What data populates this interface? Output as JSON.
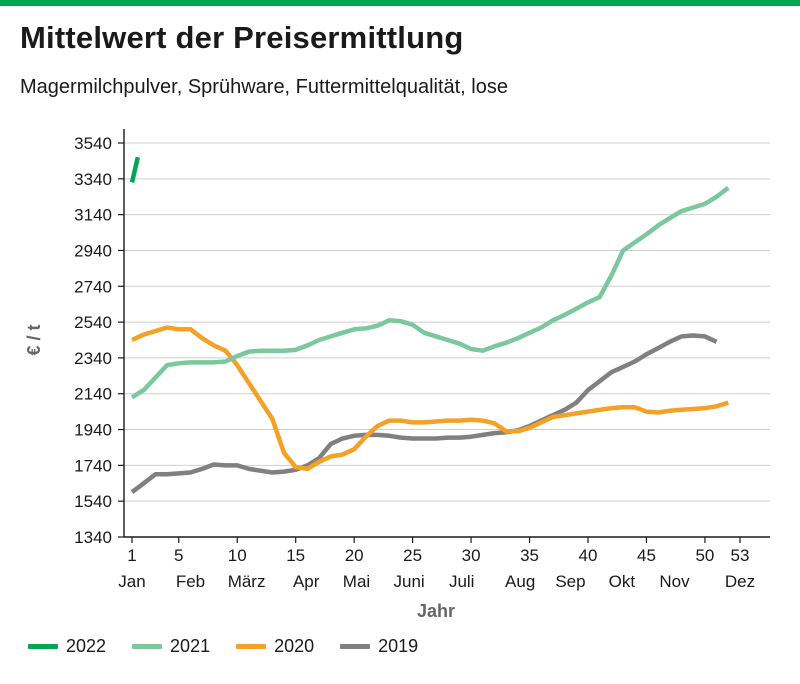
{
  "page": {
    "title": "Mittelwert der Preisermittlung",
    "subtitle": "Magermilchpulver, Sprühware, Futtermittelqualität, lose"
  },
  "chart_data": {
    "type": "line",
    "title": "Mittelwert der Preisermittlung",
    "subtitle": "Magermilchpulver, Sprühware, Futtermittelqualität, lose",
    "xlabel": "Jahr",
    "ylabel": "€ / t",
    "ylim": [
      1340,
      3540
    ],
    "xlim": [
      1,
      53
    ],
    "y_ticks": [
      1340,
      1540,
      1740,
      1940,
      2140,
      2340,
      2540,
      2740,
      2940,
      3140,
      3340,
      3540
    ],
    "x_ticks": [
      1,
      5,
      10,
      15,
      20,
      25,
      30,
      35,
      40,
      45,
      50,
      53
    ],
    "month_labels": [
      {
        "label": "Jan",
        "x": 1
      },
      {
        "label": "Feb",
        "x": 6
      },
      {
        "label": "März",
        "x": 10.8
      },
      {
        "label": "Apr",
        "x": 15.9
      },
      {
        "label": "Mai",
        "x": 20.2
      },
      {
        "label": "Juni",
        "x": 24.7
      },
      {
        "label": "Juli",
        "x": 29.2
      },
      {
        "label": "Aug",
        "x": 34.2
      },
      {
        "label": "Sep",
        "x": 38.5
      },
      {
        "label": "Okt",
        "x": 42.9
      },
      {
        "label": "Nov",
        "x": 47.4
      },
      {
        "label": "Dez",
        "x": 53
      }
    ],
    "grid": "horizontal",
    "legend_position": "bottom",
    "series": [
      {
        "name": "2022",
        "color": "#00a651",
        "points": [
          [
            1,
            3320
          ],
          [
            1.5,
            3460
          ]
        ]
      },
      {
        "name": "2021",
        "color": "#7cc89d",
        "points": [
          [
            1,
            2120
          ],
          [
            2,
            2160
          ],
          [
            3,
            2230
          ],
          [
            4,
            2300
          ],
          [
            5,
            2310
          ],
          [
            6,
            2315
          ],
          [
            7,
            2315
          ],
          [
            8,
            2315
          ],
          [
            9,
            2320
          ],
          [
            10,
            2350
          ],
          [
            11,
            2375
          ],
          [
            12,
            2380
          ],
          [
            13,
            2380
          ],
          [
            14,
            2380
          ],
          [
            15,
            2385
          ],
          [
            16,
            2410
          ],
          [
            17,
            2440
          ],
          [
            18,
            2460
          ],
          [
            19,
            2480
          ],
          [
            20,
            2500
          ],
          [
            21,
            2505
          ],
          [
            22,
            2520
          ],
          [
            23,
            2550
          ],
          [
            24,
            2545
          ],
          [
            25,
            2525
          ],
          [
            26,
            2480
          ],
          [
            27,
            2460
          ],
          [
            28,
            2440
          ],
          [
            29,
            2420
          ],
          [
            30,
            2390
          ],
          [
            31,
            2380
          ],
          [
            32,
            2405
          ],
          [
            33,
            2425
          ],
          [
            34,
            2450
          ],
          [
            35,
            2480
          ],
          [
            36,
            2510
          ],
          [
            37,
            2550
          ],
          [
            38,
            2580
          ],
          [
            39,
            2615
          ],
          [
            40,
            2650
          ],
          [
            41,
            2680
          ],
          [
            42,
            2800
          ],
          [
            43,
            2940
          ],
          [
            44,
            2985
          ],
          [
            45,
            3030
          ],
          [
            46,
            3080
          ],
          [
            47,
            3120
          ],
          [
            48,
            3160
          ],
          [
            49,
            3180
          ],
          [
            50,
            3200
          ],
          [
            51,
            3240
          ],
          [
            52,
            3290
          ]
        ]
      },
      {
        "name": "2020",
        "color": "#f4a125",
        "points": [
          [
            1,
            2440
          ],
          [
            2,
            2470
          ],
          [
            3,
            2490
          ],
          [
            4,
            2510
          ],
          [
            5,
            2500
          ],
          [
            6,
            2500
          ],
          [
            7,
            2450
          ],
          [
            8,
            2410
          ],
          [
            9,
            2380
          ],
          [
            10,
            2300
          ],
          [
            11,
            2200
          ],
          [
            12,
            2100
          ],
          [
            13,
            2000
          ],
          [
            14,
            1810
          ],
          [
            15,
            1730
          ],
          [
            16,
            1720
          ],
          [
            17,
            1760
          ],
          [
            18,
            1790
          ],
          [
            19,
            1800
          ],
          [
            20,
            1830
          ],
          [
            21,
            1900
          ],
          [
            22,
            1960
          ],
          [
            23,
            1990
          ],
          [
            24,
            1990
          ],
          [
            25,
            1980
          ],
          [
            26,
            1980
          ],
          [
            27,
            1985
          ],
          [
            28,
            1990
          ],
          [
            29,
            1990
          ],
          [
            30,
            1995
          ],
          [
            31,
            1990
          ],
          [
            32,
            1975
          ],
          [
            33,
            1930
          ],
          [
            34,
            1930
          ],
          [
            35,
            1950
          ],
          [
            36,
            1980
          ],
          [
            37,
            2010
          ],
          [
            38,
            2020
          ],
          [
            39,
            2030
          ],
          [
            40,
            2040
          ],
          [
            41,
            2050
          ],
          [
            42,
            2060
          ],
          [
            43,
            2065
          ],
          [
            44,
            2065
          ],
          [
            45,
            2040
          ],
          [
            46,
            2035
          ],
          [
            47,
            2045
          ],
          [
            48,
            2050
          ],
          [
            49,
            2055
          ],
          [
            50,
            2060
          ],
          [
            51,
            2070
          ],
          [
            52,
            2090
          ]
        ]
      },
      {
        "name": "2019",
        "color": "#808080",
        "points": [
          [
            1,
            1590
          ],
          [
            2,
            1640
          ],
          [
            3,
            1690
          ],
          [
            4,
            1690
          ],
          [
            5,
            1695
          ],
          [
            6,
            1700
          ],
          [
            7,
            1720
          ],
          [
            8,
            1745
          ],
          [
            9,
            1740
          ],
          [
            10,
            1740
          ],
          [
            11,
            1720
          ],
          [
            12,
            1710
          ],
          [
            13,
            1700
          ],
          [
            14,
            1705
          ],
          [
            15,
            1715
          ],
          [
            16,
            1740
          ],
          [
            17,
            1780
          ],
          [
            18,
            1860
          ],
          [
            19,
            1890
          ],
          [
            20,
            1905
          ],
          [
            21,
            1910
          ],
          [
            22,
            1910
          ],
          [
            23,
            1905
          ],
          [
            24,
            1895
          ],
          [
            25,
            1890
          ],
          [
            26,
            1890
          ],
          [
            27,
            1890
          ],
          [
            28,
            1895
          ],
          [
            29,
            1895
          ],
          [
            30,
            1900
          ],
          [
            31,
            1910
          ],
          [
            32,
            1920
          ],
          [
            33,
            1925
          ],
          [
            34,
            1935
          ],
          [
            35,
            1960
          ],
          [
            36,
            1990
          ],
          [
            37,
            2020
          ],
          [
            38,
            2050
          ],
          [
            39,
            2090
          ],
          [
            40,
            2160
          ],
          [
            41,
            2210
          ],
          [
            42,
            2260
          ],
          [
            43,
            2290
          ],
          [
            44,
            2320
          ],
          [
            45,
            2360
          ],
          [
            46,
            2395
          ],
          [
            47,
            2430
          ],
          [
            48,
            2460
          ],
          [
            49,
            2465
          ],
          [
            50,
            2460
          ],
          [
            51,
            2430
          ]
        ]
      }
    ]
  }
}
